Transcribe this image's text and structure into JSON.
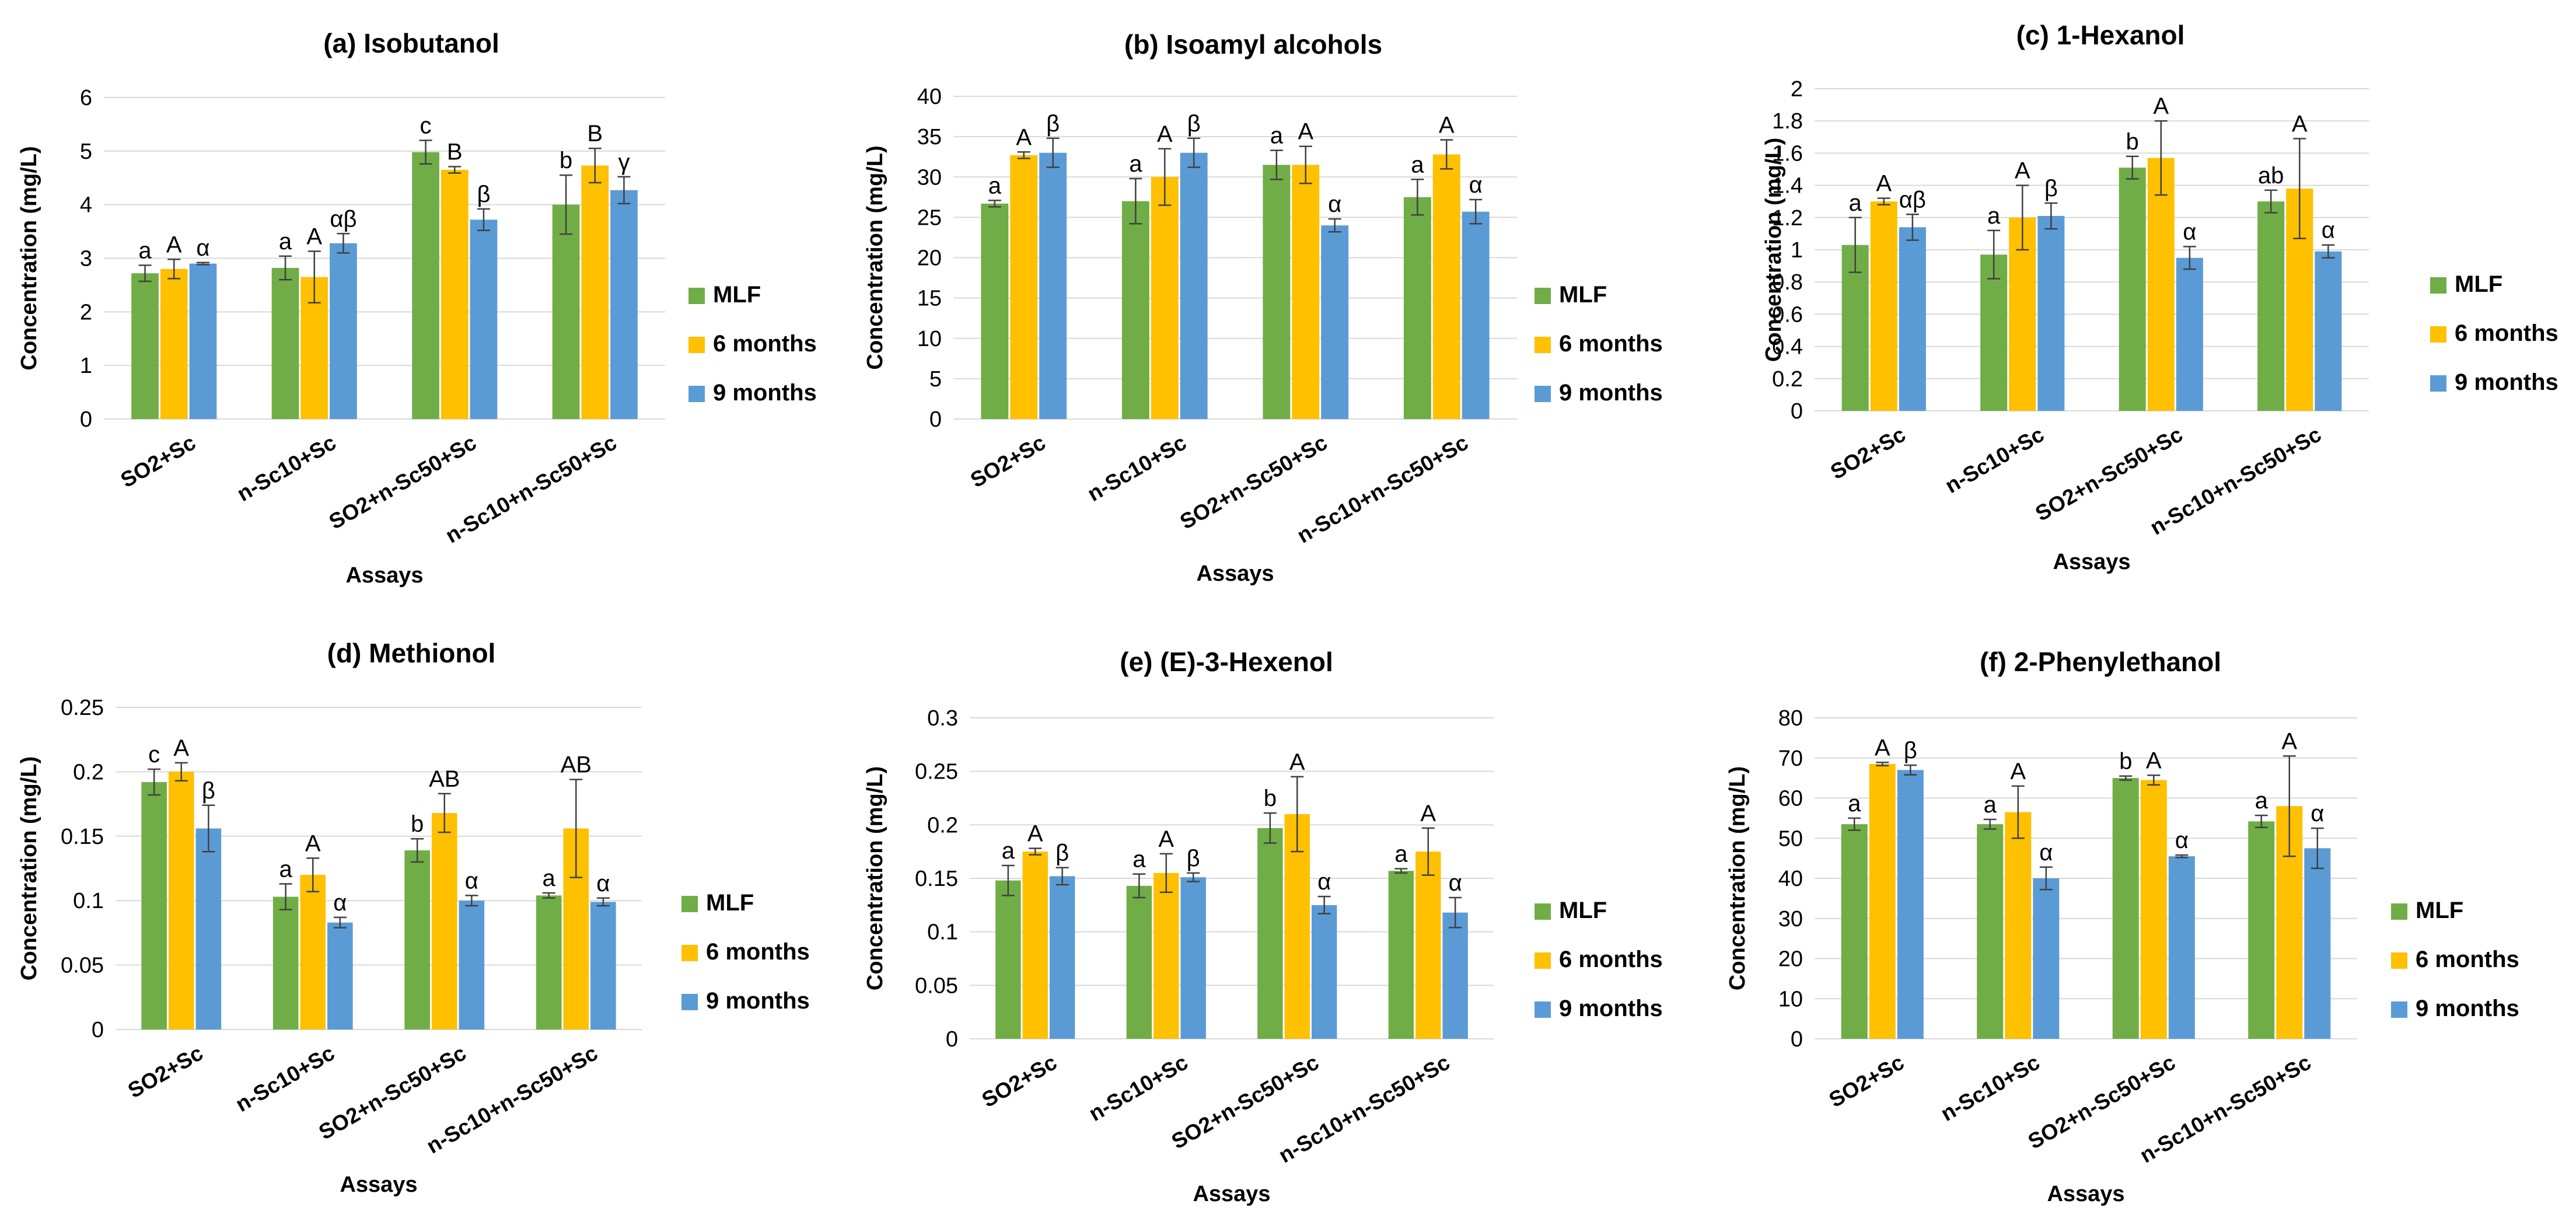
{
  "colors": {
    "MLF": "#70ad47",
    "6 months": "#ffc000",
    "9 months": "#5b9bd5"
  },
  "chart_data": [
    {
      "type": "bar",
      "title": "(a) Isobutanol",
      "xlabel": "Assays",
      "ylabel": "Concentration (mg/L)",
      "ylim": [
        0,
        6
      ],
      "ystep": 1,
      "ticklabels": [
        "0",
        "1",
        "2",
        "3",
        "4",
        "5",
        "6"
      ],
      "grid": true,
      "legend": "right",
      "categories": [
        "SO2+Sc",
        "n-Sc10+Sc",
        "SO2+n-Sc50+Sc",
        "n-Sc10+n-Sc50+Sc"
      ],
      "series": [
        {
          "name": "MLF",
          "values": [
            2.72,
            2.82,
            4.98,
            4.0
          ],
          "errors": [
            0.15,
            0.22,
            0.22,
            0.55
          ],
          "letters": [
            "a",
            "a",
            "c",
            "b"
          ]
        },
        {
          "name": "6 months",
          "values": [
            2.8,
            2.65,
            4.65,
            4.73
          ],
          "errors": [
            0.18,
            0.48,
            0.06,
            0.32
          ],
          "letters": [
            "A",
            "A",
            "B",
            "B"
          ]
        },
        {
          "name": "9 months",
          "values": [
            2.9,
            3.28,
            3.72,
            4.27
          ],
          "errors": [
            0.02,
            0.18,
            0.2,
            0.25
          ],
          "letters": [
            "α",
            "αβ",
            "β",
            "γ"
          ]
        }
      ]
    },
    {
      "type": "bar",
      "title": "(b) Isoamyl alcohols",
      "xlabel": "Assays",
      "ylabel": "Concentration (mg/L)",
      "ylim": [
        0,
        40
      ],
      "ystep": 5,
      "ticklabels": [
        "0",
        "5",
        "10",
        "15",
        "20",
        "25",
        "30",
        "35",
        "40"
      ],
      "grid": true,
      "legend": "right",
      "categories": [
        "SO2+Sc",
        "n-Sc10+Sc",
        "SO2+n-Sc50+Sc",
        "n-Sc10+n-Sc50+Sc"
      ],
      "series": [
        {
          "name": "MLF",
          "values": [
            26.7,
            27.0,
            31.5,
            27.5
          ],
          "errors": [
            0.4,
            2.8,
            1.8,
            2.2
          ],
          "letters": [
            "a",
            "a",
            "a",
            "a"
          ]
        },
        {
          "name": "6 months",
          "values": [
            32.7,
            30.0,
            31.5,
            32.8
          ],
          "errors": [
            0.4,
            3.5,
            2.3,
            1.8
          ],
          "letters": [
            "A",
            "A",
            "A",
            "A"
          ]
        },
        {
          "name": "9 months",
          "values": [
            33.0,
            33.0,
            24.0,
            25.7
          ],
          "errors": [
            1.8,
            1.8,
            0.8,
            1.5
          ],
          "letters": [
            "β",
            "β",
            "α",
            "α"
          ]
        }
      ]
    },
    {
      "type": "bar",
      "title": "(c) 1-Hexanol",
      "xlabel": "Assays",
      "ylabel": "Concentration (mg/L)",
      "ylim": [
        0,
        2
      ],
      "ystep": 0.2,
      "ticklabels": [
        "0",
        "0.2",
        "0.4",
        "0.6",
        "0.8",
        "1",
        "1.2",
        "1.4",
        "1.6",
        "1.8",
        "2"
      ],
      "grid": true,
      "legend": "right",
      "categories": [
        "SO2+Sc",
        "n-Sc10+Sc",
        "SO2+n-Sc50+Sc",
        "n-Sc10+n-Sc50+Sc"
      ],
      "series": [
        {
          "name": "MLF",
          "values": [
            1.03,
            0.97,
            1.51,
            1.3
          ],
          "errors": [
            0.17,
            0.15,
            0.07,
            0.07
          ],
          "letters": [
            "a",
            "a",
            "b",
            "ab"
          ]
        },
        {
          "name": "6 months",
          "values": [
            1.3,
            1.2,
            1.57,
            1.38
          ],
          "errors": [
            0.02,
            0.2,
            0.23,
            0.31
          ],
          "letters": [
            "A",
            "A",
            "A",
            "A"
          ]
        },
        {
          "name": "9 months",
          "values": [
            1.14,
            1.21,
            0.95,
            0.99
          ],
          "errors": [
            0.08,
            0.08,
            0.07,
            0.04
          ],
          "letters": [
            "αβ",
            "β",
            "α",
            "α"
          ]
        }
      ]
    },
    {
      "type": "bar",
      "title": "(d)  Methionol",
      "xlabel": "Assays",
      "ylabel": "Concentration (mg/L)",
      "ylim": [
        0,
        0.25
      ],
      "ystep": 0.05,
      "ticklabels": [
        "0",
        "0.05",
        "0.1",
        "0.15",
        "0.2",
        "0.25"
      ],
      "grid": true,
      "legend": "right",
      "categories": [
        "SO2+Sc",
        "n-Sc10+Sc",
        "SO2+n-Sc50+Sc",
        "n-Sc10+n-Sc50+Sc"
      ],
      "series": [
        {
          "name": "MLF",
          "values": [
            0.192,
            0.103,
            0.139,
            0.104
          ],
          "errors": [
            0.01,
            0.01,
            0.009,
            0.002
          ],
          "letters": [
            "c",
            "a",
            "b",
            "a"
          ]
        },
        {
          "name": "6 months",
          "values": [
            0.2,
            0.12,
            0.168,
            0.156
          ],
          "errors": [
            0.007,
            0.013,
            0.015,
            0.038
          ],
          "letters": [
            "A",
            "A",
            "AB",
            "AB"
          ]
        },
        {
          "name": "9 months",
          "values": [
            0.156,
            0.083,
            0.1,
            0.099
          ],
          "errors": [
            0.018,
            0.004,
            0.004,
            0.003
          ],
          "letters": [
            "β",
            "α",
            "α",
            "α"
          ]
        }
      ]
    },
    {
      "type": "bar",
      "title": "(e) (E)-3-Hexenol",
      "xlabel": "Assays",
      "ylabel": "Concentration (mg/L)",
      "ylim": [
        0,
        0.3
      ],
      "ystep": 0.05,
      "ticklabels": [
        "0",
        "0.05",
        "0.1",
        "0.15",
        "0.2",
        "0.25",
        "0.3"
      ],
      "grid": true,
      "legend": "right",
      "categories": [
        "SO2+Sc",
        "n-Sc10+Sc",
        "SO2+n-Sc50+Sc",
        "n-Sc10+n-Sc50+Sc"
      ],
      "series": [
        {
          "name": "MLF",
          "values": [
            0.148,
            0.143,
            0.197,
            0.157
          ],
          "errors": [
            0.014,
            0.011,
            0.014,
            0.002
          ],
          "letters": [
            "a",
            "a",
            "b",
            "a"
          ]
        },
        {
          "name": "6 months",
          "values": [
            0.175,
            0.155,
            0.21,
            0.175
          ],
          "errors": [
            0.003,
            0.018,
            0.035,
            0.022
          ],
          "letters": [
            "A",
            "A",
            "A",
            "A"
          ]
        },
        {
          "name": "9 months",
          "values": [
            0.152,
            0.151,
            0.125,
            0.118
          ],
          "errors": [
            0.008,
            0.004,
            0.008,
            0.014
          ],
          "letters": [
            "β",
            "β",
            "α",
            "α"
          ]
        }
      ]
    },
    {
      "type": "bar",
      "title": "(f) 2-Phenylethanol",
      "xlabel": "Assays",
      "ylabel": "Concentration (mg/L)",
      "ylim": [
        0,
        80
      ],
      "ystep": 10,
      "ticklabels": [
        "0",
        "10",
        "20",
        "30",
        "40",
        "50",
        "60",
        "70",
        "80"
      ],
      "grid": true,
      "legend": "right",
      "categories": [
        "SO2+Sc",
        "n-Sc10+Sc",
        "SO2+n-Sc50+Sc",
        "n-Sc10+n-Sc50+Sc"
      ],
      "series": [
        {
          "name": "MLF",
          "values": [
            53.5,
            53.5,
            65.0,
            54.2
          ],
          "errors": [
            1.5,
            1.2,
            0.5,
            1.5
          ],
          "letters": [
            "a",
            "a",
            "b",
            "a"
          ]
        },
        {
          "name": "6 months",
          "values": [
            68.5,
            56.5,
            64.5,
            58.0
          ],
          "errors": [
            0.4,
            6.5,
            1.2,
            12.5
          ],
          "letters": [
            "A",
            "A",
            "A",
            "A"
          ]
        },
        {
          "name": "9 months",
          "values": [
            67.0,
            40.0,
            45.5,
            47.5
          ],
          "errors": [
            1.2,
            2.8,
            0.3,
            5.0
          ],
          "letters": [
            "β",
            "α",
            "α",
            "α"
          ]
        }
      ]
    }
  ]
}
